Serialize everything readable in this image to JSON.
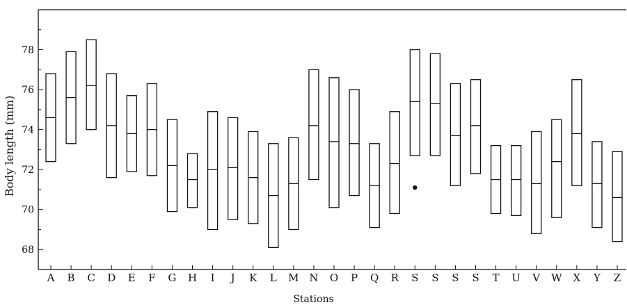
{
  "chart_data": {
    "type": "box",
    "xlabel": "Stations",
    "ylabel": "Body length (mm)",
    "ylim": [
      67,
      80
    ],
    "yticks": [
      68,
      70,
      72,
      74,
      76,
      78
    ],
    "categories": [
      "A",
      "B",
      "C",
      "D",
      "E",
      "F",
      "G",
      "H",
      "I",
      "J",
      "K",
      "L",
      "M",
      "N",
      "O",
      "P",
      "Q",
      "R",
      "S",
      "S",
      "S",
      "S",
      "T",
      "U",
      "V",
      "W",
      "X",
      "Y",
      "Z"
    ],
    "boxes": [
      {
        "low": 72.4,
        "mid": 74.6,
        "high": 76.8
      },
      {
        "low": 73.3,
        "mid": 75.6,
        "high": 77.9
      },
      {
        "low": 74.0,
        "mid": 76.2,
        "high": 78.5
      },
      {
        "low": 71.6,
        "mid": 74.2,
        "high": 76.8
      },
      {
        "low": 71.9,
        "mid": 73.8,
        "high": 75.7
      },
      {
        "low": 71.7,
        "mid": 74.0,
        "high": 76.3
      },
      {
        "low": 69.9,
        "mid": 72.2,
        "high": 74.5
      },
      {
        "low": 70.1,
        "mid": 71.5,
        "high": 72.8
      },
      {
        "low": 69.0,
        "mid": 72.0,
        "high": 74.9
      },
      {
        "low": 69.5,
        "mid": 72.1,
        "high": 74.6
      },
      {
        "low": 69.3,
        "mid": 71.6,
        "high": 73.9
      },
      {
        "low": 68.1,
        "mid": 70.7,
        "high": 73.3
      },
      {
        "low": 69.0,
        "mid": 71.3,
        "high": 73.6
      },
      {
        "low": 71.5,
        "mid": 74.2,
        "high": 77.0
      },
      {
        "low": 70.1,
        "mid": 73.4,
        "high": 76.6
      },
      {
        "low": 70.7,
        "mid": 73.3,
        "high": 76.0
      },
      {
        "low": 69.1,
        "mid": 71.2,
        "high": 73.3
      },
      {
        "low": 69.8,
        "mid": 72.3,
        "high": 74.9
      },
      {
        "low": 72.7,
        "mid": 75.4,
        "high": 78.0
      },
      {
        "low": 72.7,
        "mid": 75.3,
        "high": 77.8
      },
      {
        "low": 71.2,
        "mid": 73.7,
        "high": 76.3
      },
      {
        "low": 71.8,
        "mid": 74.2,
        "high": 76.5
      },
      {
        "low": 69.8,
        "mid": 71.5,
        "high": 73.2
      },
      {
        "low": 69.7,
        "mid": 71.5,
        "high": 73.2
      },
      {
        "low": 68.8,
        "mid": 71.3,
        "high": 73.9
      },
      {
        "low": 69.6,
        "mid": 72.4,
        "high": 74.5
      },
      {
        "low": 71.2,
        "mid": 73.8,
        "high": 76.5
      },
      {
        "low": 69.1,
        "mid": 71.3,
        "high": 73.4
      },
      {
        "low": 68.4,
        "mid": 70.6,
        "high": 72.9
      }
    ],
    "points": [
      {
        "category_index": 18,
        "y": 71.1
      }
    ],
    "grid": false
  }
}
